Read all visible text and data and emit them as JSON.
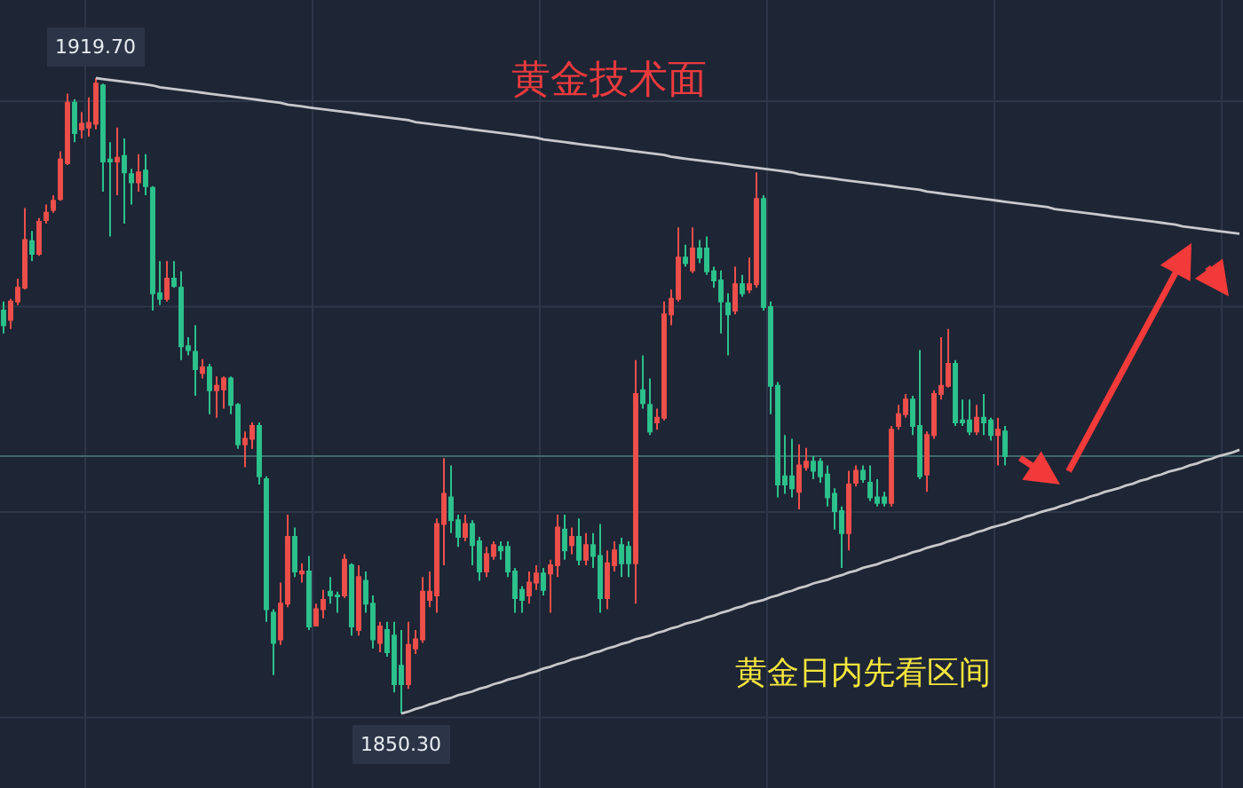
{
  "chart_data": {
    "type": "candlestick",
    "title": "黄金技术面",
    "categories": [
      null,
      null,
      null,
      null,
      null,
      null,
      null,
      null,
      null,
      null,
      null,
      null,
      null,
      null,
      null,
      null,
      null,
      null,
      null,
      null,
      null,
      null,
      null,
      null,
      null,
      null,
      null,
      null,
      null,
      null,
      null,
      null,
      null,
      null,
      null,
      null,
      null,
      null,
      null,
      null,
      null,
      null,
      null,
      null,
      null,
      null,
      null,
      null,
      null,
      null,
      null,
      null,
      null,
      null,
      null,
      null,
      null,
      null,
      null,
      null,
      null,
      null,
      null,
      null,
      null,
      null,
      null,
      null,
      null,
      null,
      null,
      null,
      null,
      null,
      null,
      null,
      null,
      null,
      null,
      null,
      null,
      null,
      null,
      null,
      null,
      null,
      null,
      null,
      null,
      null,
      null,
      null,
      null,
      null,
      null,
      null,
      null,
      null,
      null,
      null,
      null,
      null,
      null,
      null,
      null,
      null,
      null,
      null,
      null,
      null,
      null,
      null,
      null,
      null,
      null,
      null,
      null,
      null,
      null,
      null,
      null,
      null,
      null,
      null,
      null,
      null,
      null,
      null,
      null,
      null,
      null,
      null,
      null,
      null,
      null,
      null,
      null,
      null,
      null,
      null,
      null,
      null,
      null,
      null,
      null,
      null,
      null,
      null,
      null,
      null,
      null,
      null,
      null,
      null,
      null,
      null,
      null,
      null,
      null,
      null,
      null,
      null,
      null,
      null,
      null,
      null,
      null,
      null,
      null,
      null,
      null,
      null,
      null,
      null,
      null
    ],
    "ohlc": [
      [
        1894.3,
        1895.3,
        1891.8,
        1892.7
      ],
      [
        1893.3,
        1895.6,
        1892.3,
        1895.3
      ],
      [
        1895.3,
        1897.8,
        1894.9,
        1896.8
      ],
      [
        1896.8,
        1905.5,
        1896.6,
        1902.0
      ],
      [
        1901.9,
        1903.0,
        1899.7,
        1900.5
      ],
      [
        1900.5,
        1904.4,
        1900.3,
        1904.0
      ],
      [
        1904.2,
        1905.9,
        1903.8,
        1905.0
      ],
      [
        1905.3,
        1906.9,
        1905.0,
        1906.3
      ],
      [
        1906.5,
        1911.7,
        1906.3,
        1910.8
      ],
      [
        1910.4,
        1918.0,
        1910.2,
        1917.0
      ],
      [
        1917.0,
        1917.4,
        1912.7,
        1913.7
      ],
      [
        1914.1,
        1916.0,
        1913.1,
        1914.7
      ],
      [
        1914.3,
        1917.6,
        1913.3,
        1914.8
      ],
      [
        1914.7,
        1919.7,
        1914.1,
        1919.1
      ],
      [
        1918.9,
        1919.1,
        1907.3,
        1910.6
      ],
      [
        1910.8,
        1912.7,
        1902.4,
        1910.6
      ],
      [
        1910.6,
        1914.3,
        1906.9,
        1911.0
      ],
      [
        1911.2,
        1913.1,
        1903.8,
        1909.4
      ],
      [
        1909.2,
        1909.8,
        1905.9,
        1908.3
      ],
      [
        1908.3,
        1911.4,
        1907.3,
        1909.4
      ],
      [
        1909.6,
        1911.4,
        1906.9,
        1907.9
      ],
      [
        1907.7,
        1907.9,
        1894.3,
        1896.2
      ],
      [
        1896.2,
        1899.7,
        1894.9,
        1895.6
      ],
      [
        1895.6,
        1899.7,
        1895.3,
        1897.8
      ],
      [
        1897.8,
        1899.7,
        1896.8,
        1897.0
      ],
      [
        1896.8,
        1898.6,
        1888.9,
        1890.4
      ],
      [
        1890.4,
        1891.4,
        1889.4,
        1890.0
      ],
      [
        1889.8,
        1892.7,
        1885.0,
        1887.9
      ],
      [
        1887.5,
        1889.0,
        1886.9,
        1888.1
      ],
      [
        1888.1,
        1888.5,
        1883.0,
        1885.6
      ],
      [
        1885.6,
        1887.1,
        1882.6,
        1886.1
      ],
      [
        1885.7,
        1887.1,
        1883.6,
        1886.9
      ],
      [
        1886.9,
        1887.1,
        1883.0,
        1884.0
      ],
      [
        1884.0,
        1884.2,
        1879.2,
        1879.7
      ],
      [
        1879.7,
        1881.1,
        1877.2,
        1880.3
      ],
      [
        1880.3,
        1882.1,
        1879.2,
        1881.7
      ],
      [
        1881.7,
        1882.1,
        1875.3,
        1876.2
      ],
      [
        1875.9,
        1876.2,
        1860.3,
        1861.7
      ],
      [
        1861.3,
        1861.7,
        1854.5,
        1858.0
      ],
      [
        1858.4,
        1864.6,
        1857.8,
        1862.3
      ],
      [
        1862.3,
        1872.0,
        1861.9,
        1869.6
      ],
      [
        1869.6,
        1870.6,
        1865.2,
        1865.8
      ],
      [
        1865.6,
        1866.7,
        1864.6,
        1865.8
      ],
      [
        1865.8,
        1867.5,
        1859.4,
        1859.8
      ],
      [
        1859.9,
        1862.3,
        1859.8,
        1861.7
      ],
      [
        1861.7,
        1863.8,
        1860.7,
        1862.7
      ],
      [
        1863.6,
        1865.2,
        1862.3,
        1863.2
      ],
      [
        1863.2,
        1863.6,
        1861.3,
        1863.1
      ],
      [
        1863.2,
        1867.7,
        1862.9,
        1867.1
      ],
      [
        1866.5,
        1866.7,
        1858.8,
        1859.8
      ],
      [
        1859.4,
        1866.5,
        1858.8,
        1865.2
      ],
      [
        1864.8,
        1865.8,
        1861.3,
        1862.3
      ],
      [
        1862.3,
        1863.2,
        1857.4,
        1858.4
      ],
      [
        1858.0,
        1860.3,
        1857.0,
        1859.8
      ],
      [
        1859.4,
        1860.3,
        1856.5,
        1857.0
      ],
      [
        1858.8,
        1860.3,
        1852.6,
        1853.5
      ],
      [
        1855.5,
        1859.4,
        1850.3,
        1853.5
      ],
      [
        1853.5,
        1860.3,
        1853.0,
        1857.8
      ],
      [
        1857.4,
        1859.4,
        1856.8,
        1858.4
      ],
      [
        1858.4,
        1865.2,
        1858.0,
        1863.6
      ],
      [
        1862.7,
        1865.8,
        1861.9,
        1863.6
      ],
      [
        1863.2,
        1871.6,
        1861.3,
        1871.0
      ],
      [
        1871.0,
        1878.2,
        1866.5,
        1874.3
      ],
      [
        1873.9,
        1877.4,
        1870.0,
        1871.4
      ],
      [
        1871.4,
        1872.0,
        1868.5,
        1869.6
      ],
      [
        1869.6,
        1872.0,
        1869.1,
        1871.0
      ],
      [
        1871.0,
        1871.4,
        1866.5,
        1868.7
      ],
      [
        1869.1,
        1869.6,
        1864.8,
        1865.8
      ],
      [
        1865.8,
        1868.5,
        1865.2,
        1867.7
      ],
      [
        1867.5,
        1869.1,
        1867.1,
        1868.7
      ],
      [
        1868.5,
        1869.1,
        1867.1,
        1868.1
      ],
      [
        1868.5,
        1869.1,
        1865.2,
        1865.8
      ],
      [
        1865.8,
        1866.2,
        1861.3,
        1862.9
      ],
      [
        1863.8,
        1864.2,
        1861.3,
        1862.7
      ],
      [
        1863.2,
        1865.8,
        1862.3,
        1864.6
      ],
      [
        1864.6,
        1866.5,
        1863.8,
        1865.6
      ],
      [
        1865.6,
        1866.2,
        1863.2,
        1863.8
      ],
      [
        1865.6,
        1867.1,
        1861.3,
        1866.5
      ],
      [
        1866.5,
        1872.0,
        1865.2,
        1870.6
      ],
      [
        1870.4,
        1872.0,
        1867.1,
        1868.1
      ],
      [
        1868.7,
        1870.6,
        1867.7,
        1869.6
      ],
      [
        1869.6,
        1871.6,
        1866.5,
        1867.1
      ],
      [
        1867.1,
        1870.0,
        1866.5,
        1868.7
      ],
      [
        1868.7,
        1870.0,
        1866.2,
        1867.5
      ],
      [
        1867.5,
        1871.0,
        1861.3,
        1862.9
      ],
      [
        1862.9,
        1868.1,
        1861.7,
        1866.7
      ],
      [
        1866.5,
        1869.1,
        1865.8,
        1868.1
      ],
      [
        1868.7,
        1869.5,
        1865.2,
        1866.7
      ],
      [
        1868.5,
        1869.1,
        1865.2,
        1866.7
      ],
      [
        1866.7,
        1888.9,
        1862.3,
        1885.2
      ],
      [
        1885.6,
        1889.4,
        1883.6,
        1884.2
      ],
      [
        1884.0,
        1886.9,
        1880.7,
        1881.1
      ],
      [
        1882.1,
        1883.6,
        1881.3,
        1882.6
      ],
      [
        1882.6,
        1895.3,
        1882.3,
        1893.9
      ],
      [
        1893.9,
        1896.6,
        1892.7,
        1895.6
      ],
      [
        1895.6,
        1903.4,
        1895.3,
        1900.1
      ],
      [
        1900.1,
        1901.5,
        1899.1,
        1899.5
      ],
      [
        1898.7,
        1903.4,
        1898.4,
        1901.1
      ],
      [
        1901.1,
        1902.0,
        1899.5,
        1900.1
      ],
      [
        1901.1,
        1902.4,
        1898.2,
        1898.6
      ],
      [
        1898.6,
        1899.1,
        1896.8,
        1897.6
      ],
      [
        1897.6,
        1898.7,
        1891.8,
        1895.3
      ],
      [
        1895.1,
        1896.2,
        1889.4,
        1893.9
      ],
      [
        1894.3,
        1899.1,
        1893.9,
        1897.2
      ],
      [
        1897.2,
        1898.2,
        1895.8,
        1896.2
      ],
      [
        1896.6,
        1900.1,
        1896.2,
        1897.2
      ],
      [
        1897.2,
        1909.4,
        1896.8,
        1906.5
      ],
      [
        1906.5,
        1906.9,
        1894.3,
        1894.7
      ],
      [
        1894.7,
        1895.3,
        1883.0,
        1886.1
      ],
      [
        1886.1,
        1886.5,
        1873.9,
        1875.3
      ],
      [
        1876.2,
        1880.7,
        1874.3,
        1875.3
      ],
      [
        1876.2,
        1880.3,
        1873.9,
        1874.9
      ],
      [
        1874.5,
        1879.7,
        1872.6,
        1877.4
      ],
      [
        1877.2,
        1879.3,
        1876.8,
        1877.8
      ],
      [
        1877.8,
        1878.4,
        1875.9,
        1876.8
      ],
      [
        1877.8,
        1878.2,
        1875.5,
        1876.2
      ],
      [
        1876.4,
        1877.4,
        1872.9,
        1873.9
      ],
      [
        1874.3,
        1874.9,
        1870.4,
        1872.4
      ],
      [
        1872.4,
        1872.9,
        1866.2,
        1870.0
      ],
      [
        1870.0,
        1876.8,
        1868.1,
        1875.3
      ],
      [
        1875.5,
        1877.4,
        1875.1,
        1876.8
      ],
      [
        1876.8,
        1877.4,
        1875.5,
        1875.9
      ],
      [
        1875.5,
        1877.4,
        1873.5,
        1873.9
      ],
      [
        1873.9,
        1875.9,
        1872.9,
        1873.3
      ],
      [
        1873.9,
        1874.5,
        1872.9,
        1873.3
      ],
      [
        1873.3,
        1881.7,
        1872.9,
        1881.3
      ],
      [
        1881.7,
        1884.0,
        1881.3,
        1883.0
      ],
      [
        1883.0,
        1885.2,
        1882.6,
        1884.6
      ],
      [
        1884.6,
        1885.0,
        1880.7,
        1881.7
      ],
      [
        1881.7,
        1890.0,
        1875.9,
        1876.2
      ],
      [
        1876.4,
        1881.1,
        1874.5,
        1880.7
      ],
      [
        1880.7,
        1885.6,
        1880.3,
        1885.2
      ],
      [
        1885.2,
        1891.4,
        1884.6,
        1886.1
      ],
      [
        1886.1,
        1892.3,
        1885.9,
        1888.5
      ],
      [
        1888.5,
        1888.9,
        1881.7,
        1882.1
      ],
      [
        1882.3,
        1884.6,
        1881.7,
        1882.1
      ],
      [
        1882.3,
        1884.6,
        1880.7,
        1881.1
      ],
      [
        1881.1,
        1884.0,
        1880.7,
        1882.6
      ],
      [
        1882.6,
        1885.2,
        1880.7,
        1882.1
      ],
      [
        1882.3,
        1882.6,
        1880.1,
        1880.7
      ],
      [
        1880.7,
        1882.6,
        1877.4,
        1881.3
      ],
      [
        1881.1,
        1881.7,
        1877.4,
        1878.4
      ],
      null,
      null,
      null,
      null,
      null,
      null,
      null,
      null,
      null,
      null,
      null,
      null,
      null,
      null,
      null,
      null,
      null,
      null,
      null,
      null,
      null,
      null,
      null,
      null,
      null,
      null,
      null,
      null,
      null,
      null,
      null,
      null,
      null
    ],
    "series": [
      {
        "type": "line",
        "color": "#c8c8cc",
        "values": [
          null,
          null,
          null,
          null,
          null,
          null,
          null,
          null,
          null,
          null,
          null,
          null,
          null,
          1919.7,
          1919.6,
          1919.5,
          1919.4,
          1919.3,
          1919.2,
          1919.1,
          1919.0,
          1918.9,
          1918.7,
          1918.6,
          1918.5,
          1918.4,
          1918.3,
          1918.2,
          1918.1,
          1918.0,
          1917.9,
          1917.8,
          1917.7,
          1917.6,
          1917.5,
          1917.4,
          1917.3,
          1917.2,
          1917.1,
          1917.0,
          1916.8,
          1916.7,
          1916.6,
          1916.5,
          1916.4,
          1916.3,
          1916.2,
          1916.1,
          1916.0,
          1915.9,
          1915.8,
          1915.7,
          1915.6,
          1915.5,
          1915.4,
          1915.3,
          1915.2,
          1915.1,
          1914.9,
          1914.8,
          1914.7,
          1914.6,
          1914.5,
          1914.4,
          1914.3,
          1914.2,
          1914.1,
          1914.0,
          1913.9,
          1913.8,
          1913.7,
          1913.6,
          1913.5,
          1913.4,
          1913.3,
          1913.2,
          1913.0,
          1912.9,
          1912.8,
          1912.7,
          1912.6,
          1912.5,
          1912.4,
          1912.3,
          1912.2,
          1912.1,
          1912.0,
          1911.9,
          1911.8,
          1911.7,
          1911.6,
          1911.5,
          1911.4,
          1911.3,
          1911.1,
          1911.0,
          1910.9,
          1910.8,
          1910.7,
          1910.6,
          1910.5,
          1910.4,
          1910.3,
          1910.2,
          1910.1,
          1910.0,
          1909.9,
          1909.8,
          1909.7,
          1909.6,
          1909.5,
          1909.4,
          1909.2,
          1909.1,
          1909.0,
          1908.9,
          1908.8,
          1908.7,
          1908.6,
          1908.5,
          1908.4,
          1908.3,
          1908.2,
          1908.1,
          1908.0,
          1907.9,
          1907.8,
          1907.7,
          1907.6,
          1907.5,
          1907.3,
          1907.2,
          1907.1,
          1907.0,
          1906.9,
          1906.8,
          1906.7,
          1906.6,
          1906.5,
          1906.4,
          1906.3,
          1906.2,
          1906.1,
          1906.0,
          1905.9,
          1905.8,
          1905.7,
          1905.6,
          1905.4,
          1905.3,
          1905.2,
          1905.1,
          1905.0,
          1904.9,
          1904.8,
          1904.7,
          1904.6,
          1904.5,
          1904.4,
          1904.3,
          1904.2,
          1904.1,
          1904.0,
          1903.9,
          1903.8,
          1903.7,
          1903.5,
          1903.4,
          1903.3,
          1903.2,
          1903.1,
          1903.0,
          1902.9,
          1902.8,
          1902.7
        ]
      },
      {
        "type": "line",
        "color": "#c8c8cc",
        "values": [
          null,
          null,
          null,
          null,
          null,
          null,
          null,
          null,
          null,
          null,
          null,
          null,
          null,
          null,
          null,
          null,
          null,
          null,
          null,
          null,
          null,
          null,
          null,
          null,
          null,
          null,
          null,
          null,
          null,
          null,
          null,
          null,
          null,
          null,
          null,
          null,
          null,
          null,
          null,
          null,
          null,
          null,
          null,
          null,
          null,
          null,
          null,
          null,
          null,
          null,
          null,
          null,
          null,
          null,
          null,
          null,
          1850.3,
          1850.5,
          1850.8,
          1851.0,
          1851.3,
          1851.5,
          1851.8,
          1852.0,
          1852.3,
          1852.5,
          1852.7,
          1853.0,
          1853.2,
          1853.5,
          1853.7,
          1854.0,
          1854.2,
          1854.4,
          1854.7,
          1854.9,
          1855.2,
          1855.4,
          1855.7,
          1855.9,
          1856.2,
          1856.4,
          1856.6,
          1856.9,
          1857.1,
          1857.4,
          1857.6,
          1857.9,
          1858.1,
          1858.4,
          1858.6,
          1858.8,
          1859.1,
          1859.3,
          1859.6,
          1859.8,
          1860.1,
          1860.3,
          1860.5,
          1860.8,
          1861.0,
          1861.3,
          1861.5,
          1861.8,
          1862.0,
          1862.3,
          1862.5,
          1862.7,
          1863.0,
          1863.2,
          1863.5,
          1863.7,
          1864.0,
          1864.2,
          1864.5,
          1864.7,
          1864.9,
          1865.2,
          1865.4,
          1865.7,
          1865.9,
          1866.2,
          1866.4,
          1866.6,
          1866.9,
          1867.1,
          1867.4,
          1867.6,
          1867.9,
          1868.1,
          1868.4,
          1868.6,
          1868.8,
          1869.1,
          1869.3,
          1869.6,
          1869.8,
          1870.1,
          1870.3,
          1870.6,
          1870.8,
          1871.0,
          1871.3,
          1871.5,
          1871.8,
          1872.0,
          1872.3,
          1872.5,
          1872.7,
          1873.0,
          1873.2,
          1873.5,
          1873.7,
          1874.0,
          1874.2,
          1874.5,
          1874.7,
          1874.9,
          1875.2,
          1875.4,
          1875.7,
          1875.9,
          1876.2,
          1876.4,
          1876.7,
          1876.9,
          1877.1,
          1877.4,
          1877.6,
          1877.9,
          1878.1,
          1878.4,
          1878.6,
          1878.8,
          1879.1
        ]
      }
    ],
    "ref_lines": [
      {
        "axis": "y",
        "value": 1878.4,
        "color": "#3f6a6c"
      }
    ],
    "annotations": [
      "黄金日内先看区间",
      {
        "text": "1919.70",
        "y": 1919.7
      },
      {
        "text": "1850.30",
        "y": 1850.3
      }
    ],
    "grid": true,
    "tick_labels": false
  }
}
